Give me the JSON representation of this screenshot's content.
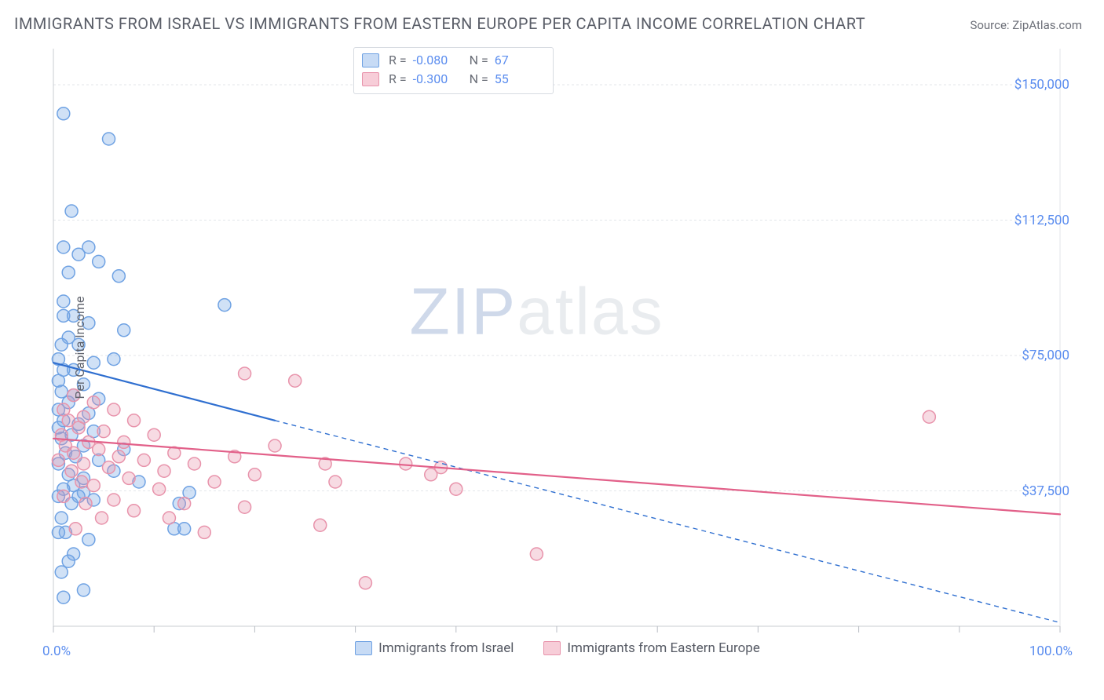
{
  "title": "IMMIGRANTS FROM ISRAEL VS IMMIGRANTS FROM EASTERN EUROPE PER CAPITA INCOME CORRELATION CHART",
  "source_label": "Source: ",
  "source_value": "ZipAtlas.com",
  "ylabel": "Per Capita Income",
  "watermark_a": "ZIP",
  "watermark_b": "atlas",
  "chart": {
    "type": "scatter",
    "xlim": [
      0,
      100
    ],
    "ylim": [
      0,
      160000
    ],
    "x_ticks_minor": [
      0,
      10,
      20,
      30,
      40,
      50,
      60,
      70,
      80,
      90,
      100
    ],
    "x_tick_labels": [
      {
        "v": 0,
        "label": "0.0%"
      },
      {
        "v": 100,
        "label": "100.0%"
      }
    ],
    "y_grid": [
      37500,
      75000,
      112500,
      150000
    ],
    "y_tick_labels": [
      {
        "v": 37500,
        "label": "$37,500"
      },
      {
        "v": 75000,
        "label": "$75,000"
      },
      {
        "v": 112500,
        "label": "$112,500"
      },
      {
        "v": 150000,
        "label": "$150,000"
      }
    ],
    "background_color": "#ffffff",
    "grid_color": "#e3e6ea",
    "axis_color": "#c9ccd2",
    "tick_color": "#b9bdc4",
    "label_blue": "#5b8def",
    "marker_radius": 8,
    "marker_stroke_width": 1.5,
    "line_width_solid": 2.2,
    "line_width_dash": 1.4,
    "dash_pattern": "6,5"
  },
  "series": [
    {
      "id": "israel",
      "name": "Immigrants from Israel",
      "swatch_fill": "#c7dbf5",
      "swatch_stroke": "#6fa2e3",
      "marker_fill": "rgba(120,168,228,0.35)",
      "marker_stroke": "#6fa2e3",
      "line_color": "#2f6fd0",
      "R_label": "R =",
      "R_value": "-0.080",
      "N_label": "N =",
      "N_value": "67",
      "trend_solid": {
        "x1": 0,
        "y1": 73000,
        "x2": 22,
        "y2": 57000
      },
      "trend_dash": {
        "x1": 22,
        "y1": 57000,
        "x2": 100,
        "y2": 1000
      },
      "points": [
        [
          1.0,
          142000
        ],
        [
          5.5,
          135000
        ],
        [
          1.8,
          115000
        ],
        [
          2.5,
          103000
        ],
        [
          3.5,
          105000
        ],
        [
          1.0,
          105000
        ],
        [
          4.5,
          101000
        ],
        [
          1.5,
          98000
        ],
        [
          6.5,
          97000
        ],
        [
          1.0,
          90000
        ],
        [
          17.0,
          89000
        ],
        [
          1.0,
          86000
        ],
        [
          2.0,
          86000
        ],
        [
          3.5,
          84000
        ],
        [
          7.0,
          82000
        ],
        [
          1.5,
          80000
        ],
        [
          0.8,
          78000
        ],
        [
          2.5,
          78000
        ],
        [
          6.0,
          74000
        ],
        [
          0.5,
          74000
        ],
        [
          4.0,
          73000
        ],
        [
          1.0,
          71000
        ],
        [
          2.0,
          71000
        ],
        [
          0.5,
          68000
        ],
        [
          3.0,
          67000
        ],
        [
          0.8,
          65000
        ],
        [
          2.0,
          64000
        ],
        [
          4.5,
          63000
        ],
        [
          1.5,
          62000
        ],
        [
          0.5,
          60000
        ],
        [
          3.5,
          59000
        ],
        [
          1.0,
          57000
        ],
        [
          2.5,
          56000
        ],
        [
          0.5,
          55000
        ],
        [
          4.0,
          54000
        ],
        [
          1.8,
          53000
        ],
        [
          0.8,
          52000
        ],
        [
          3.0,
          50000
        ],
        [
          7.0,
          49000
        ],
        [
          1.2,
          48000
        ],
        [
          2.2,
          47000
        ],
        [
          4.5,
          46000
        ],
        [
          0.5,
          45000
        ],
        [
          6.0,
          43000
        ],
        [
          1.5,
          42000
        ],
        [
          3.0,
          41000
        ],
        [
          8.5,
          40000
        ],
        [
          2.0,
          39000
        ],
        [
          12.0,
          27000
        ],
        [
          13.0,
          27000
        ],
        [
          1.0,
          38000
        ],
        [
          0.5,
          36000
        ],
        [
          4.0,
          35000
        ],
        [
          1.8,
          34000
        ],
        [
          12.5,
          34000
        ],
        [
          3.0,
          37000
        ],
        [
          13.5,
          37000
        ],
        [
          0.8,
          30000
        ],
        [
          2.5,
          36000
        ],
        [
          1.2,
          26000
        ],
        [
          3.5,
          24000
        ],
        [
          0.5,
          26000
        ],
        [
          2.0,
          20000
        ],
        [
          1.5,
          18000
        ],
        [
          0.8,
          15000
        ],
        [
          3.0,
          10000
        ],
        [
          1.0,
          8000
        ]
      ]
    },
    {
      "id": "eeurope",
      "name": "Immigrants from Eastern Europe",
      "swatch_fill": "#f7cdd8",
      "swatch_stroke": "#e893ab",
      "marker_fill": "rgba(232,147,171,0.33)",
      "marker_stroke": "#e893ab",
      "line_color": "#e26089",
      "R_label": "R =",
      "R_value": "-0.300",
      "N_label": "N =",
      "N_value": "55",
      "trend_solid": {
        "x1": 0,
        "y1": 52000,
        "x2": 100,
        "y2": 31000
      },
      "trend_dash": null,
      "points": [
        [
          19.0,
          70000
        ],
        [
          24.0,
          68000
        ],
        [
          2.0,
          64000
        ],
        [
          4.0,
          62000
        ],
        [
          1.0,
          60000
        ],
        [
          6.0,
          60000
        ],
        [
          3.0,
          58000
        ],
        [
          1.5,
          57000
        ],
        [
          8.0,
          57000
        ],
        [
          2.5,
          55000
        ],
        [
          87.0,
          58000
        ],
        [
          5.0,
          54000
        ],
        [
          0.8,
          53000
        ],
        [
          10.0,
          53000
        ],
        [
          3.5,
          51000
        ],
        [
          7.0,
          51000
        ],
        [
          1.2,
          50000
        ],
        [
          22.0,
          50000
        ],
        [
          4.5,
          49000
        ],
        [
          2.0,
          48000
        ],
        [
          12.0,
          48000
        ],
        [
          6.5,
          47000
        ],
        [
          18.0,
          47000
        ],
        [
          0.5,
          46000
        ],
        [
          9.0,
          46000
        ],
        [
          3.0,
          45000
        ],
        [
          14.0,
          45000
        ],
        [
          27.0,
          45000
        ],
        [
          35.0,
          45000
        ],
        [
          5.5,
          44000
        ],
        [
          1.8,
          43000
        ],
        [
          11.0,
          43000
        ],
        [
          20.0,
          42000
        ],
        [
          37.5,
          42000
        ],
        [
          38.5,
          44000
        ],
        [
          7.5,
          41000
        ],
        [
          2.8,
          40000
        ],
        [
          16.0,
          40000
        ],
        [
          28.0,
          40000
        ],
        [
          4.0,
          39000
        ],
        [
          10.5,
          38000
        ],
        [
          40.0,
          38000
        ],
        [
          1.0,
          36000
        ],
        [
          6.0,
          35000
        ],
        [
          13.0,
          34000
        ],
        [
          19.0,
          33000
        ],
        [
          3.2,
          34000
        ],
        [
          8.0,
          32000
        ],
        [
          4.8,
          30000
        ],
        [
          11.5,
          30000
        ],
        [
          26.5,
          28000
        ],
        [
          2.2,
          27000
        ],
        [
          15.0,
          26000
        ],
        [
          48.0,
          20000
        ],
        [
          31.0,
          12000
        ]
      ]
    }
  ]
}
